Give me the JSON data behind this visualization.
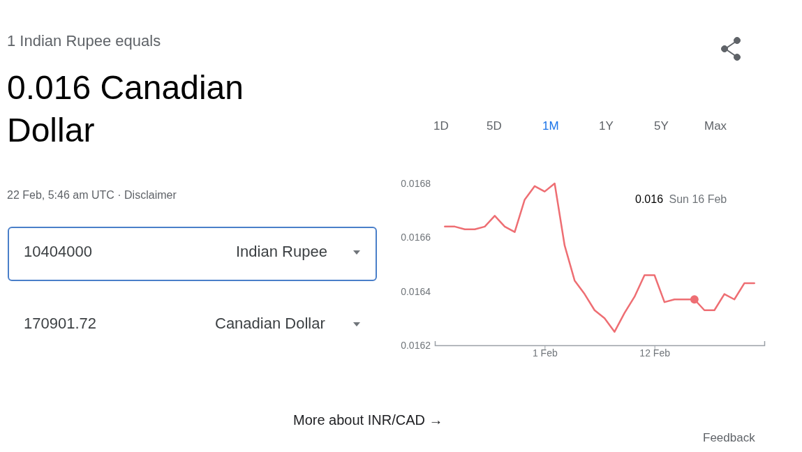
{
  "chart_data": {
    "type": "line",
    "subtitle": "1 Indian Rupee equals",
    "title": "0.016 Canadian Dollar",
    "annotations": [
      "22 Feb, 5:46 am UTC · Disclaimer",
      "10404000",
      "Indian Rupee",
      "170901.72",
      "Canadian Dollar",
      "1D",
      "5D",
      "1M",
      "1Y",
      "5Y",
      "Max",
      "More about INR/CAD →",
      "Feedback",
      "0.016 Sun 16 Feb"
    ],
    "x": [
      "--01-22",
      "--01-23",
      "--01-24",
      "--01-25",
      "--01-26",
      "--01-27",
      "--01-28",
      "--01-29",
      "--01-30",
      "--01-31",
      "--02-01",
      "--02-02",
      "--02-03",
      "--02-04",
      "--02-05",
      "--02-06",
      "--02-07",
      "--02-08",
      "--02-09",
      "--02-10",
      "--02-11",
      "--02-12",
      "--02-13",
      "--02-14",
      "--02-15",
      "--02-16",
      "--02-17",
      "--02-18",
      "--02-19",
      "--02-20",
      "--02-21",
      "--02-22"
    ],
    "series": [
      {
        "color": "#ee6e73",
        "values": [
          0.01664,
          0.01664,
          0.01663,
          0.01663,
          0.01664,
          0.01668,
          0.01664,
          0.01662,
          0.01674,
          0.01679,
          0.01677,
          0.0168,
          0.01657,
          0.01644,
          0.01639,
          0.01633,
          0.0163,
          0.01625,
          0.01632,
          0.01638,
          0.01646,
          0.01646,
          0.01636,
          0.01637,
          0.01637,
          0.01637,
          0.01633,
          0.01633,
          0.01639,
          0.01637,
          0.01643,
          0.01643
        ]
      },
      {
        "type": "scatter",
        "color": "#ee6e73",
        "x": [
          "--02-16"
        ],
        "values": [
          0.01637
        ],
        "marker": "circle"
      }
    ],
    "xlim": [
      "--01-21",
      "--02-23"
    ],
    "xticks": [
      {
        "value": "--02-01",
        "label": "1 Feb"
      },
      {
        "value": "--02-12",
        "label": "12 Feb"
      }
    ],
    "ylim": [
      0.0162,
      0.0168
    ],
    "yticks": [
      0.0162,
      0.0164,
      0.0166,
      0.0168
    ],
    "grid": false,
    "marker": "none",
    "line_style": "solid"
  }
}
